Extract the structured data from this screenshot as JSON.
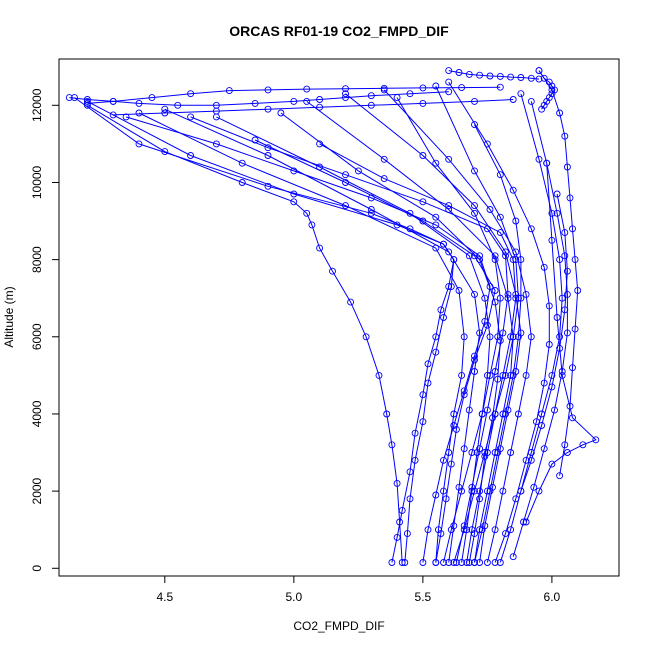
{
  "chart_data": {
    "type": "line",
    "title": "ORCAS RF01-19 CO2_FMPD_DIF",
    "xlabel": "CO2_FMPD_DIF",
    "ylabel": "Altitude (m)",
    "xlim": [
      4.09,
      6.26
    ],
    "ylim": [
      -200,
      13200
    ],
    "xticks": [
      4.5,
      5.0,
      5.5,
      6.0
    ],
    "xtick_labels": [
      "4.5",
      "5.0",
      "5.5",
      "6.0"
    ],
    "yticks": [
      0,
      2000,
      4000,
      6000,
      8000,
      10000,
      12000
    ],
    "ytick_labels": [
      "0",
      "2000",
      "4000",
      "6000",
      "8000",
      "10000",
      "12000"
    ],
    "grid": false,
    "marker": "open-circle",
    "line_color": "#0000ff",
    "series": [
      {
        "x": [
          5.38,
          5.4,
          5.42,
          5.45,
          5.47,
          5.5,
          5.52,
          5.55,
          5.57,
          5.6,
          5.62,
          5.58,
          5.45,
          5.3,
          4.9,
          4.4,
          4.15
        ],
        "y": [
          150,
          800,
          1500,
          2500,
          3500,
          4500,
          5300,
          6000,
          6700,
          7300,
          8000,
          8400,
          8800,
          9200,
          9900,
          11000,
          12200
        ]
      },
      {
        "x": [
          5.43,
          5.44,
          5.45,
          5.47,
          5.5,
          5.52,
          5.55,
          5.58,
          5.61,
          5.62,
          5.58,
          5.4,
          5.0,
          4.6,
          4.2
        ],
        "y": [
          150,
          900,
          1800,
          2800,
          3800,
          4800,
          5600,
          6500,
          7300,
          8000,
          8400,
          8900,
          9700,
          10700,
          12100
        ]
      },
      {
        "x": [
          5.42,
          5.41,
          5.4,
          5.38,
          5.36,
          5.33,
          5.28,
          5.22,
          5.15,
          5.1,
          5.07,
          5.05,
          5.0,
          4.8,
          4.5,
          4.2
        ],
        "y": [
          150,
          1200,
          2200,
          3200,
          4000,
          5000,
          6000,
          6900,
          7700,
          8300,
          8900,
          9200,
          9500,
          10000,
          10800,
          12000
        ]
      },
      {
        "x": [
          5.55,
          5.56,
          5.58,
          5.6,
          5.62,
          5.65,
          5.66,
          5.64,
          5.55,
          5.2,
          4.8,
          4.4
        ],
        "y": [
          150,
          1000,
          2000,
          3000,
          4000,
          5000,
          6000,
          7200,
          8300,
          9400,
          10500,
          11800
        ]
      },
      {
        "x": [
          5.6,
          5.62,
          5.64,
          5.66,
          5.68,
          5.7,
          5.72,
          5.7,
          5.6,
          5.3,
          4.9,
          4.5
        ],
        "y": [
          150,
          1100,
          2100,
          3100,
          4100,
          5100,
          6100,
          7100,
          8200,
          9300,
          10700,
          11900
        ]
      },
      {
        "x": [
          5.65,
          5.67,
          5.69,
          5.71,
          5.73,
          5.75,
          5.76,
          5.74,
          5.68,
          5.45,
          5.1,
          4.7
        ],
        "y": [
          150,
          1000,
          2000,
          3000,
          4000,
          5000,
          6000,
          7000,
          8100,
          9200,
          10400,
          11700
        ]
      },
      {
        "x": [
          5.68,
          5.7,
          5.72,
          5.74,
          5.77,
          5.79,
          5.8,
          5.78,
          5.72,
          5.55,
          5.25,
          4.95
        ],
        "y": [
          150,
          900,
          1800,
          2900,
          3900,
          4900,
          5900,
          6900,
          8000,
          9100,
          10300,
          11800
        ]
      },
      {
        "x": [
          5.7,
          5.72,
          5.75,
          5.78,
          5.81,
          5.84,
          5.85,
          5.83,
          5.78,
          5.6,
          5.35,
          5.05
        ],
        "y": [
          150,
          1000,
          2000,
          3000,
          4000,
          5000,
          6000,
          7000,
          8100,
          9300,
          10600,
          12100
        ]
      },
      {
        "x": [
          5.72,
          5.74,
          5.77,
          5.8,
          5.83,
          5.86,
          5.88,
          5.86,
          5.82,
          5.7,
          5.5,
          5.2
        ],
        "y": [
          150,
          1100,
          2100,
          3100,
          4100,
          5100,
          6100,
          7100,
          8200,
          9400,
          10700,
          12300
        ]
      },
      {
        "x": [
          5.75,
          5.78,
          5.81,
          5.84,
          5.87,
          5.9,
          5.92,
          5.9,
          5.86,
          5.76,
          5.6,
          5.35
        ],
        "y": [
          150,
          1000,
          2000,
          3000,
          4000,
          5000,
          6000,
          7100,
          8200,
          9300,
          10600,
          12400
        ]
      },
      {
        "x": [
          5.58,
          5.61,
          5.65,
          5.69,
          5.73,
          5.76,
          5.79,
          5.8,
          5.78,
          5.7,
          5.55,
          5.4
        ],
        "y": [
          150,
          1000,
          2000,
          3000,
          4000,
          5000,
          6000,
          7000,
          8000,
          9200,
          10500,
          12200
        ]
      },
      {
        "x": [
          5.62,
          5.66,
          5.7,
          5.74,
          5.78,
          5.82,
          5.85,
          5.87,
          5.86,
          5.8,
          5.7,
          5.55
        ],
        "y": [
          150,
          1000,
          2000,
          3000,
          4000,
          5000,
          6000,
          7000,
          8000,
          9100,
          10300,
          12500
        ]
      },
      {
        "x": [
          5.78,
          5.82,
          5.86,
          5.9,
          5.94,
          5.97,
          5.99,
          5.99,
          5.97,
          5.92,
          5.85,
          5.75,
          5.6
        ],
        "y": [
          150,
          900,
          1800,
          2800,
          3800,
          4800,
          5800,
          6800,
          7800,
          8800,
          9800,
          11000,
          12600
        ]
      },
      {
        "x": [
          5.8,
          5.84,
          5.88,
          5.92,
          5.96,
          6.0,
          6.03,
          6.04,
          6.03,
          6.0,
          5.95,
          5.88
        ],
        "y": [
          150,
          1000,
          2000,
          3000,
          4000,
          5000,
          6000,
          7000,
          8000,
          9200,
          10600,
          12300
        ]
      },
      {
        "x": [
          5.85,
          5.89,
          5.93,
          5.97,
          6.01,
          6.04,
          6.06,
          6.06,
          6.05,
          6.02,
          5.98,
          5.92
        ],
        "y": [
          300,
          1200,
          2100,
          3100,
          4100,
          5100,
          6100,
          7100,
          8100,
          9200,
          10500,
          12100
        ]
      },
      {
        "x": [
          5.9,
          5.95,
          6.0,
          6.06,
          6.12,
          6.17,
          6.08,
          6.04,
          6.02,
          6.0,
          5.98
        ],
        "y": [
          1200,
          2000,
          2700,
          3000,
          3200,
          3330,
          3900,
          5000,
          6500,
          8500,
          10500
        ]
      },
      {
        "x": [
          6.03,
          6.05,
          6.07,
          6.08,
          6.09,
          6.1,
          6.09,
          6.08,
          6.07,
          6.06,
          6.05,
          6.03,
          6.0,
          5.95
        ],
        "y": [
          2400,
          3200,
          4200,
          5200,
          6200,
          7200,
          8000,
          8800,
          9600,
          10400,
          11200,
          11800,
          12400,
          12900
        ]
      },
      {
        "x": [
          5.88,
          5.92,
          5.96,
          6.0,
          6.03,
          6.05,
          6.06,
          6.05,
          6.02
        ],
        "y": [
          2000,
          2800,
          3700,
          4700,
          5700,
          6700,
          7700,
          8700,
          9700
        ]
      },
      {
        "x": [
          5.7,
          5.73,
          5.76,
          5.79,
          5.82,
          5.85,
          5.87,
          5.88,
          5.88,
          5.86,
          5.8,
          5.7
        ],
        "y": [
          150,
          1000,
          2000,
          3000,
          4000,
          5000,
          6000,
          7000,
          8000,
          9000,
          10200,
          11500
        ]
      },
      {
        "x": [
          5.55,
          5.57,
          5.59,
          5.61,
          5.63,
          5.66,
          5.7,
          5.75,
          5.78,
          5.7,
          5.5,
          5.2,
          4.85
        ],
        "y": [
          150,
          900,
          1800,
          2700,
          3600,
          4500,
          5400,
          6300,
          7200,
          8100,
          9000,
          10000,
          11100
        ]
      },
      {
        "x": [
          5.63,
          5.66,
          5.69,
          5.72,
          5.75,
          5.78,
          5.81,
          5.83,
          5.82,
          5.75,
          5.5,
          5.2,
          4.9,
          4.6
        ],
        "y": [
          150,
          1100,
          2100,
          3100,
          4100,
          5100,
          6100,
          7100,
          8100,
          8800,
          9500,
          10200,
          10900,
          11700
        ]
      },
      {
        "x": [
          5.67,
          5.69,
          5.72,
          5.75,
          5.78,
          5.81,
          5.84,
          5.86,
          5.85,
          5.8,
          5.6,
          5.35,
          5.1
        ],
        "y": [
          150,
          1000,
          2000,
          3000,
          4000,
          5000,
          6000,
          7000,
          8000,
          8700,
          9400,
          10100,
          11000
        ]
      },
      {
        "x": [
          5.5,
          5.52,
          5.55,
          5.58,
          5.62,
          5.66,
          5.7,
          5.74,
          5.76,
          5.72,
          5.55,
          5.3,
          5.0,
          4.7,
          4.35
        ],
        "y": [
          150,
          1000,
          1900,
          2800,
          3700,
          4600,
          5500,
          6400,
          7300,
          8100,
          8900,
          9600,
          10300,
          11000,
          11700
        ]
      },
      {
        "x": [
          5.95,
          5.97,
          5.99,
          6.0,
          6.01,
          6.0,
          5.99,
          5.98,
          5.97,
          5.96
        ],
        "y": [
          12900,
          12700,
          12600,
          12500,
          12400,
          12300,
          12200,
          12100,
          12000,
          11900
        ]
      },
      {
        "x": [
          5.6,
          5.64,
          5.68,
          5.72,
          5.76,
          5.8,
          5.84,
          5.88,
          5.92,
          5.95
        ],
        "y": [
          12900,
          12850,
          12800,
          12780,
          12760,
          12750,
          12730,
          12720,
          12700,
          12680
        ]
      },
      {
        "x": [
          4.13,
          4.2,
          4.3,
          4.4,
          4.55,
          4.7,
          4.85,
          5.0,
          5.1,
          5.2,
          5.3,
          5.45,
          5.6
        ],
        "y": [
          12200,
          12150,
          12100,
          12050,
          12000,
          12000,
          12050,
          12100,
          12150,
          12200,
          12250,
          12300,
          12350
        ]
      },
      {
        "x": [
          4.2,
          4.3,
          4.45,
          4.6,
          4.75,
          4.9,
          5.05,
          5.2,
          5.35,
          5.5,
          5.65,
          5.8
        ],
        "y": [
          12050,
          12100,
          12200,
          12300,
          12380,
          12400,
          12420,
          12430,
          12440,
          12450,
          12460,
          12470
        ]
      },
      {
        "x": [
          4.3,
          4.5,
          4.7,
          4.9,
          5.1,
          5.3,
          5.5,
          5.7,
          5.85
        ],
        "y": [
          11750,
          11800,
          11850,
          11900,
          11950,
          12000,
          12050,
          12100,
          12150
        ]
      }
    ]
  }
}
